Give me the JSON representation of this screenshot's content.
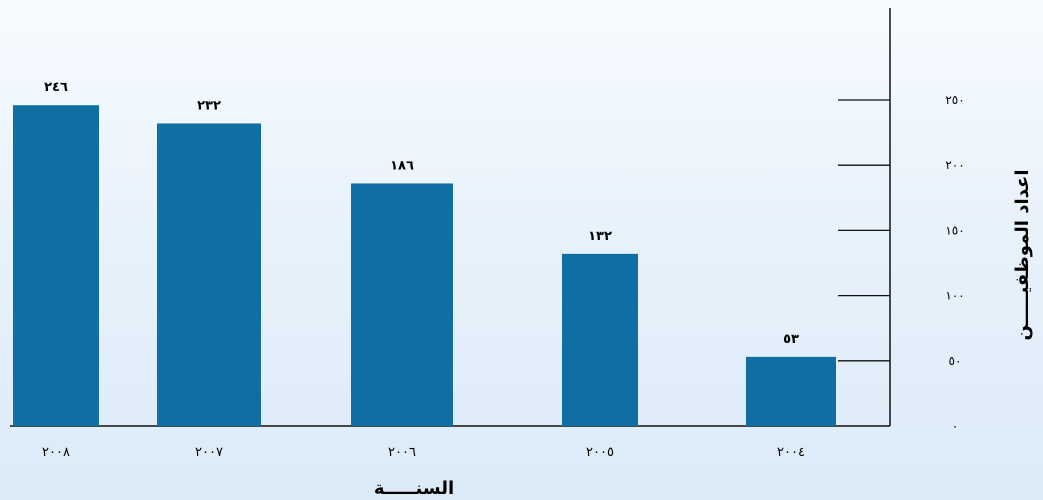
{
  "chart_data": {
    "type": "bar",
    "categories": [
      "٢٠٠٨",
      "٢٠٠٧",
      "٢٠٠٦",
      "٢٠٠٥",
      "٢٠٠٤"
    ],
    "values": [
      246,
      232,
      186,
      132,
      53
    ],
    "data_labels": [
      "٢٤٦",
      "٢٣٢",
      "١٨٦",
      "١٣٢",
      "٥٣"
    ],
    "xlabel": "السنـــــة",
    "ylabel": "اعداد الموظفيـــــن",
    "ylim": [
      0,
      250
    ],
    "y_ticks": [
      0,
      50,
      100,
      150,
      200,
      250
    ],
    "y_tick_labels": [
      "٠",
      "٥٠",
      "١٠٠",
      "١٥٠",
      "٢٠٠",
      "٢٥٠"
    ],
    "grid": false,
    "legend": "none",
    "y_axis_position": "right",
    "bar_color": "#0f6fa3",
    "axis_color": "#111111"
  }
}
